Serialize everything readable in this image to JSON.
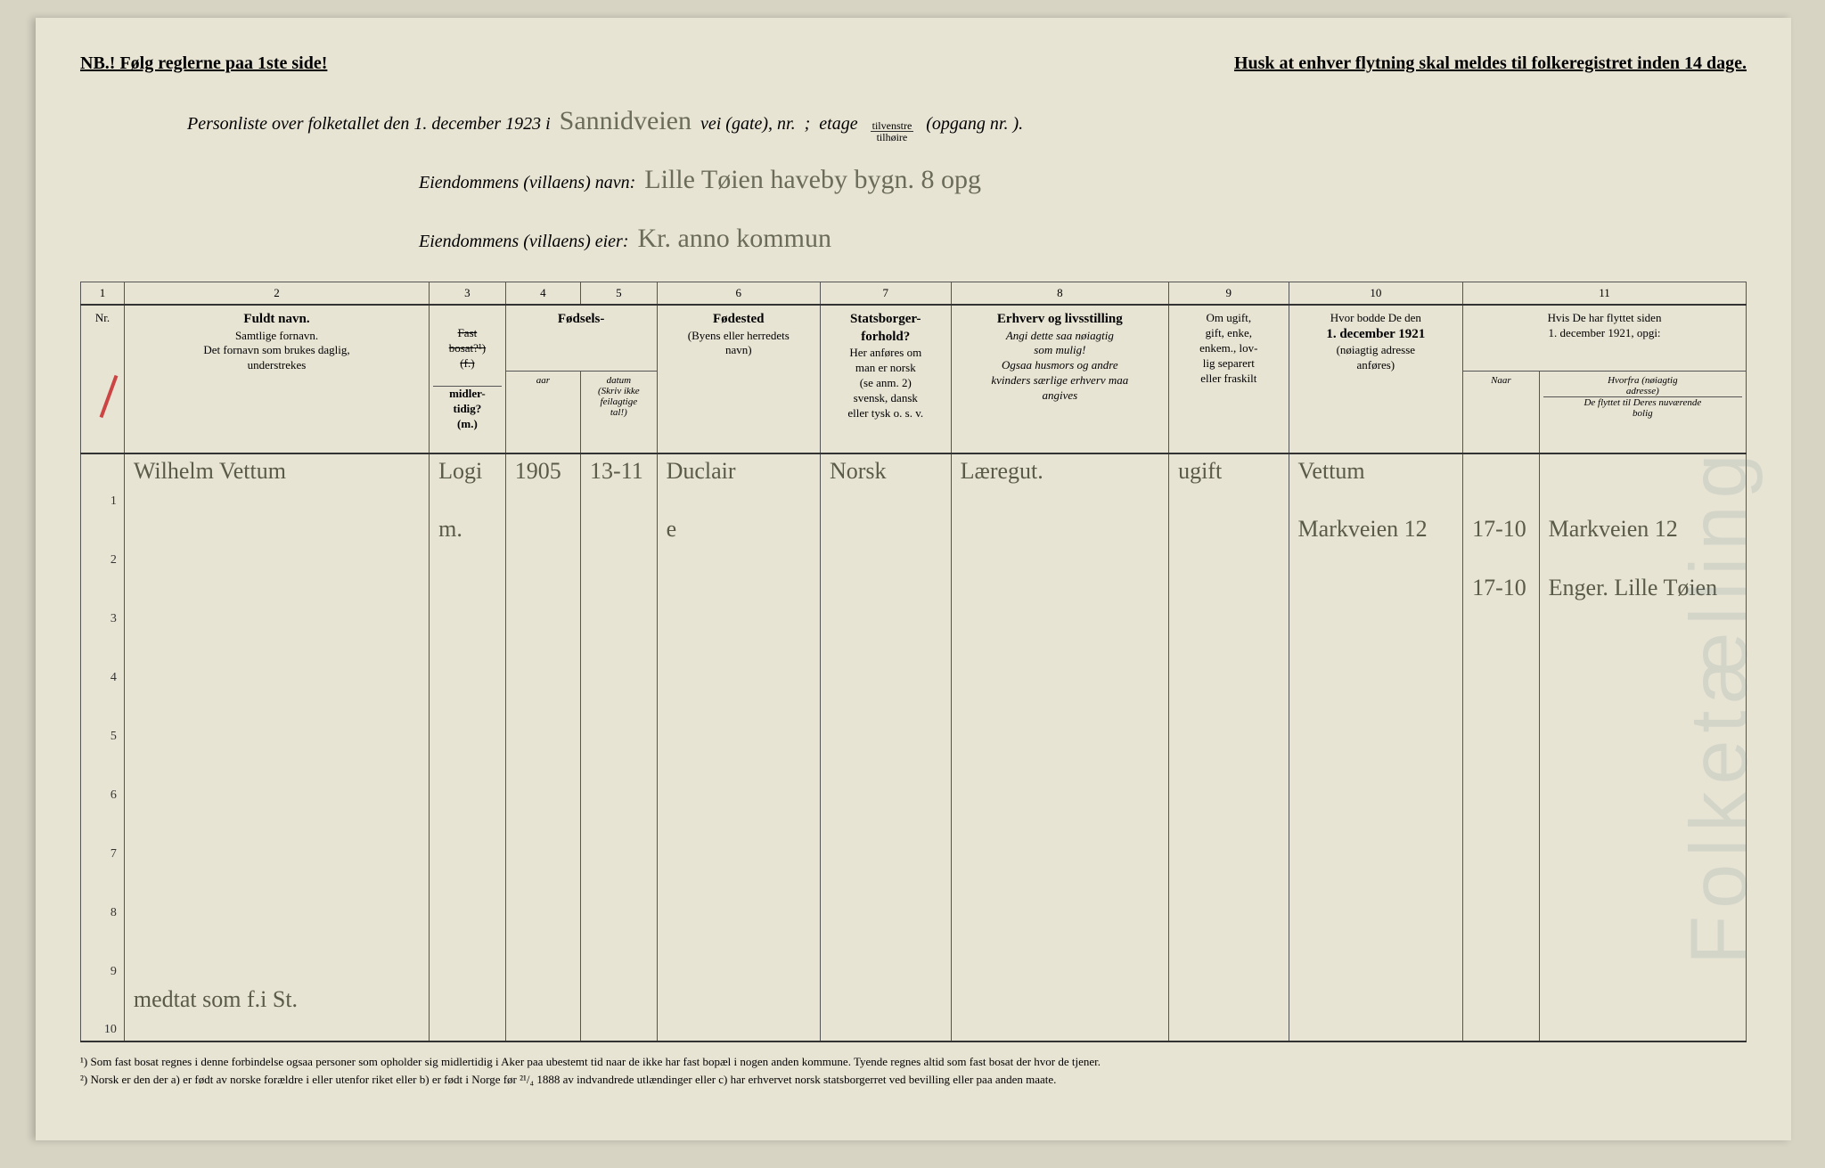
{
  "header": {
    "left": "NB.! Følg reglerne paa 1ste side!",
    "right": "Husk at enhver flytning skal meldes til folkeregistret inden 14 dage."
  },
  "title": {
    "line1_print": "Personliste over folketallet den 1. december 1923 i",
    "line1_hand": "Sannidveien",
    "line1_tail1": "vei (gate), nr.",
    "line1_tail2": ";",
    "line1_tail3": "etage",
    "line1_frac_top": "tilvenstre",
    "line1_frac_bot": "tilhøire",
    "line1_tail4": "(opgang nr.      ).",
    "line2_print": "Eiendommens (villaens) navn:",
    "line2_hand": "Lille Tøien haveby bygn. 8 opg",
    "line3_print": "Eiendommens (villaens) eier:",
    "line3_hand": "Kr. anno kommun"
  },
  "columns": {
    "nums": [
      "1",
      "2",
      "3",
      "4",
      "5",
      "6",
      "7",
      "8",
      "9",
      "10",
      "11"
    ],
    "c1": "Nr.",
    "c2_bold": "Fuldt navn.",
    "c2_sub": "Samtlige fornavn.\nDet fornavn som brukes daglig,\nunderstrekes",
    "c3_top": "Fast\nbosat?¹)\n(f.)",
    "c3_bot": "midler-\ntidig?\n(m.)",
    "c45_bold": "Fødsels-",
    "c4": "aar",
    "c5": "datum",
    "c45_sub": "(Skriv ikke feilagtige\ntal!)",
    "c6_bold": "Fødested",
    "c6_sub": "(Byens eller herredets\nnavn)",
    "c7_bold": "Statsborger-\nforhold?",
    "c7_sub": "Her anføres om\nman er norsk\n(se anm. 2)\nsvensk, dansk\neller tysk o. s. v.",
    "c8_bold": "Erhverv og livsstilling",
    "c8_sub": "Angi dette saa nøiagtig\nsom mulig!\nOgsaa husmors og andre\nkvinders særlige erhverv maa\nangives",
    "c9": "Om ugift,\ngift, enke,\nenkem., lov-\nlig separert\neller fraskilt",
    "c10": "Hvor bodde De den",
    "c10_bold": "1. december 1921",
    "c10_sub": "(nøiagtig adresse\nanføres)",
    "c11": "Hvis De har flyttet siden\n1. december 1921, opgi:",
    "c11a": "Naar",
    "c11b": "Hvorfra (nøiagtig\nadresse)",
    "c11c": "De flyttet til Deres nuværende\nbolig"
  },
  "rows": [
    {
      "nr": "1",
      "name": "Wilhelm Vettum",
      "bosat": "Logi",
      "aar": "1905",
      "datum": "13-11",
      "fodested": "Duclair",
      "stats": "Norsk",
      "erhverv": "Læregut.",
      "sivil": "ugift",
      "bodde": "Vettum",
      "naar": "",
      "hvorfra": ""
    },
    {
      "nr": "2",
      "name": "",
      "bosat": "m.",
      "aar": "",
      "datum": "",
      "fodested": "e",
      "stats": "",
      "erhverv": "",
      "sivil": "",
      "bodde": "Markveien 12",
      "naar": "17-10",
      "hvorfra": "Markveien 12"
    },
    {
      "nr": "3",
      "name": "",
      "bosat": "",
      "aar": "",
      "datum": "",
      "fodested": "",
      "stats": "",
      "erhverv": "",
      "sivil": "",
      "bodde": "",
      "naar": "17-10",
      "hvorfra": "Enger. Lille Tøien"
    },
    {
      "nr": "4",
      "name": "",
      "bosat": "",
      "aar": "",
      "datum": "",
      "fodested": "",
      "stats": "",
      "erhverv": "",
      "sivil": "",
      "bodde": "",
      "naar": "",
      "hvorfra": ""
    },
    {
      "nr": "5",
      "name": "",
      "bosat": "",
      "aar": "",
      "datum": "",
      "fodested": "",
      "stats": "",
      "erhverv": "",
      "sivil": "",
      "bodde": "",
      "naar": "",
      "hvorfra": ""
    },
    {
      "nr": "6",
      "name": "",
      "bosat": "",
      "aar": "",
      "datum": "",
      "fodested": "",
      "stats": "",
      "erhverv": "",
      "sivil": "",
      "bodde": "",
      "naar": "",
      "hvorfra": ""
    },
    {
      "nr": "7",
      "name": "",
      "bosat": "",
      "aar": "",
      "datum": "",
      "fodested": "",
      "stats": "",
      "erhverv": "",
      "sivil": "",
      "bodde": "",
      "naar": "",
      "hvorfra": ""
    },
    {
      "nr": "8",
      "name": "",
      "bosat": "",
      "aar": "",
      "datum": "",
      "fodested": "",
      "stats": "",
      "erhverv": "",
      "sivil": "",
      "bodde": "",
      "naar": "",
      "hvorfra": ""
    },
    {
      "nr": "9",
      "name": "",
      "bosat": "",
      "aar": "",
      "datum": "",
      "fodested": "",
      "stats": "",
      "erhverv": "",
      "sivil": "",
      "bodde": "",
      "naar": "",
      "hvorfra": ""
    },
    {
      "nr": "10",
      "name": "medtat som f.i St.",
      "bosat": "",
      "aar": "",
      "datum": "",
      "fodested": "",
      "stats": "",
      "erhverv": "",
      "sivil": "",
      "bodde": "",
      "naar": "",
      "hvorfra": ""
    }
  ],
  "footnotes": {
    "f1": "¹) Som fast bosat regnes i denne forbindelse ogsaa personer som opholder sig midlertidig i Aker paa ubestemt tid naar de ikke har fast bopæl i nogen anden kommune. Tyende regnes altid som fast bosat der hvor de tjener.",
    "f2": "²) Norsk er den der a) er født av norske forældre i eller utenfor riket eller b) er født i Norge før ²¹/₄ 1888 av indvandrede utlændinger eller c) har erhvervet norsk statsborgerret ved bevilling eller paa anden maate."
  },
  "bleed": "Folketælling",
  "colors": {
    "paper": "#e8e4d4",
    "ink": "#333333",
    "hand": "#5a5a48",
    "red": "#c44444"
  },
  "colwidths": [
    "40",
    "280",
    "70",
    "60",
    "70",
    "150",
    "120",
    "200",
    "110",
    "160",
    "200"
  ]
}
